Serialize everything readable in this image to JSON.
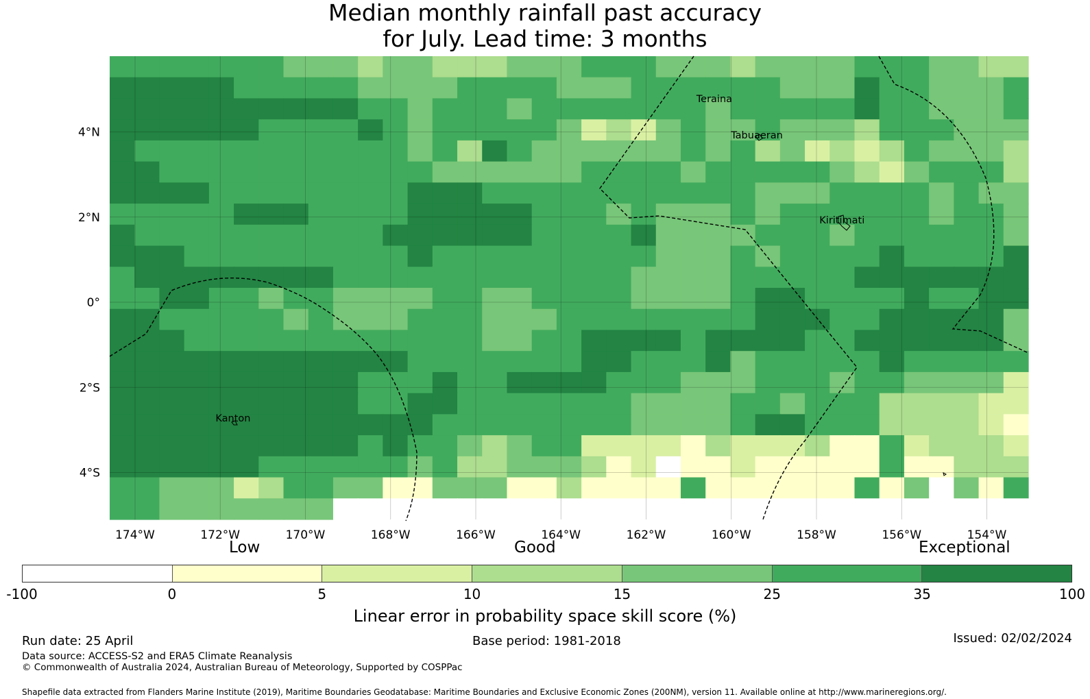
{
  "title": {
    "line1": "Median monthly rainfall past accuracy",
    "line2": "for July. Lead time: 3 months"
  },
  "map": {
    "lon_ticks": [
      "174°W",
      "172°W",
      "170°W",
      "168°W",
      "166°W",
      "164°W",
      "162°W",
      "160°W",
      "158°W",
      "156°W",
      "154°W"
    ],
    "lat_ticks": [
      "4°N",
      "2°N",
      "0°",
      "2°S",
      "4°S"
    ],
    "places": [
      {
        "name": "Teraina",
        "lon": -160.4,
        "lat": 4.7
      },
      {
        "name": "Tabuaeran",
        "lon": -159.4,
        "lat": 3.85
      },
      {
        "name": "Kiritimati",
        "lon": -157.4,
        "lat": 1.85
      },
      {
        "name": "Kanton",
        "lon": -171.7,
        "lat": -2.8
      }
    ],
    "level_colors": [
      "#ffffff",
      "#ffffcc",
      "#d9f0a3",
      "#addd8e",
      "#78c679",
      "#41ab5d",
      "#238443"
    ],
    "grid_rows": [
      "5555555444344333444555444344445554433",
      "6666655555444455554445555554446554445",
      "6666666666554555455555554555556554445",
      "6666665555654555554232454454443555444",
      "6555555555554536544444454534232354443",
      "6655555555555444444555545555543245553",
      "6666555555556665555555555544455554544",
      "5555566655556666655545444545555554554",
      "6555555555566666655556444455545555554",
      "6665555555556555555555444545555655556",
      "5666666665555555555554444555556666666",
      "5566554554444554455554444566555565566",
      "6655555454445554445555555566655666664",
      "6665555555555554455666656666556666664",
      "6666666666665555555665556455555655555",
      "6666666666555655666655544455545544442",
      "6666666666556655555554444554555333322",
      "6666666666666555555554444566555333321",
      "6666666666565543455222213222311523332",
      "6666665555554533444312011211111511333",
      "5544423554411444113111151111115140415",
      "5544444440000000000000000000000000000"
    ]
  },
  "colorbar": {
    "categories": [
      "Low",
      "Good",
      "Exceptional"
    ],
    "ticks": [
      "-100",
      "0",
      "5",
      "10",
      "15",
      "25",
      "35",
      "100"
    ],
    "colors": [
      "#ffffff",
      "#ffffcc",
      "#d9f0a3",
      "#addd8e",
      "#78c679",
      "#41ab5d",
      "#238443"
    ],
    "title": "Linear error in probability space skill score (%)"
  },
  "footer": {
    "run_date": "Run date: 25 April",
    "base_period": "Base period: 1981-2018",
    "issued": "Issued: 02/02/2024",
    "data_source": "Data source: ACCESS-S2 and ERA5 Climate Reanalysis",
    "copyright": "© Commonwealth of Australia 2024, Australian Bureau of Meteorology, Supported by COSPPac",
    "shapefile": "Shapefile data extracted from Flanders Marine Institute (2019), Maritime Boundaries Geodatabase: Maritime Boundaries and Exclusive Economic Zones (200NM), version 11. Available online at http://www.marineregions.org/."
  }
}
